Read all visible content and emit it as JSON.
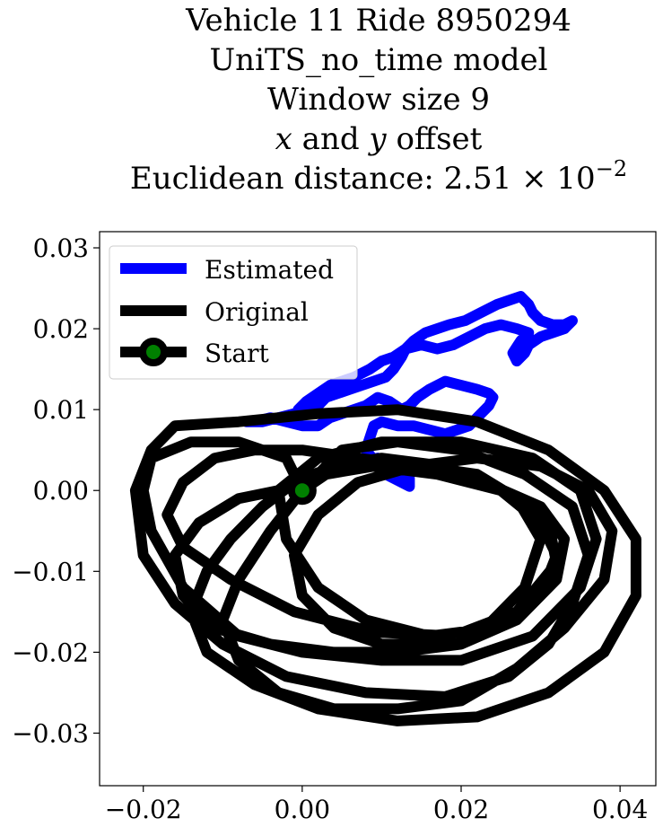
{
  "title": {
    "line1": "Vehicle 11 Ride 8950294",
    "line2": "UniTS_no_time model",
    "line3": "Window size 9",
    "line4_x": "x",
    "line4_and": " and ",
    "line4_y": "y",
    "line4_rest": " offset",
    "line5_prefix": "Euclidean distance: 2.51 × 10",
    "line5_exp": "−2"
  },
  "chart_data": {
    "type": "line",
    "xlim": [
      -0.0255,
      0.0445
    ],
    "ylim": [
      -0.0365,
      0.032
    ],
    "xticks": [
      {
        "value": -0.02,
        "label": "−0.02"
      },
      {
        "value": 0.0,
        "label": "0.00"
      },
      {
        "value": 0.02,
        "label": "0.02"
      },
      {
        "value": 0.04,
        "label": "0.04"
      }
    ],
    "yticks": [
      {
        "value": 0.03,
        "label": "0.03"
      },
      {
        "value": 0.02,
        "label": "0.02"
      },
      {
        "value": 0.01,
        "label": "0.01"
      },
      {
        "value": 0.0,
        "label": "0.00"
      },
      {
        "value": -0.01,
        "label": "−0.01"
      },
      {
        "value": -0.02,
        "label": "−0.02"
      },
      {
        "value": -0.03,
        "label": "−0.03"
      }
    ],
    "grid": false,
    "legend_placement": "upper-left",
    "series": [
      {
        "name": "Estimated",
        "color": "#0000ff",
        "points": [
          [
            0.0,
            0.0
          ],
          [
            0.0015,
            0.0015
          ],
          [
            0.0035,
            0.003
          ],
          [
            0.005,
            0.0045
          ],
          [
            0.0065,
            0.004
          ],
          [
            0.008,
            0.0035
          ],
          [
            0.0095,
            0.004
          ],
          [
            0.0115,
            0.003
          ],
          [
            0.0135,
            0.0015
          ],
          [
            0.0135,
            0.0005
          ],
          [
            0.0125,
            0.001
          ],
          [
            0.0105,
            0.002
          ],
          [
            0.008,
            0.005
          ],
          [
            0.009,
            0.008
          ],
          [
            0.01,
            0.0085
          ],
          [
            0.012,
            0.008
          ],
          [
            0.014,
            0.008
          ],
          [
            0.016,
            0.0075
          ],
          [
            0.018,
            0.007
          ],
          [
            0.0195,
            0.0075
          ],
          [
            0.021,
            0.008
          ],
          [
            0.0225,
            0.0095
          ],
          [
            0.0235,
            0.0105
          ],
          [
            0.024,
            0.0115
          ],
          [
            0.0235,
            0.012
          ],
          [
            0.022,
            0.0125
          ],
          [
            0.02,
            0.013
          ],
          [
            0.018,
            0.0135
          ],
          [
            0.016,
            0.0125
          ],
          [
            0.0145,
            0.0115
          ],
          [
            0.0135,
            0.0105
          ],
          [
            0.0125,
            0.01
          ],
          [
            0.011,
            0.011
          ],
          [
            0.0095,
            0.0115
          ],
          [
            0.008,
            0.0105
          ],
          [
            0.0065,
            0.01
          ],
          [
            0.005,
            0.0095
          ],
          [
            0.0035,
            0.009
          ],
          [
            0.002,
            0.008
          ],
          [
            0.0,
            0.008
          ],
          [
            -0.002,
            0.0085
          ],
          [
            -0.004,
            0.009
          ],
          [
            -0.006,
            0.0085
          ],
          [
            -0.007,
            0.0085
          ],
          [
            -0.005,
            0.0085
          ],
          [
            -0.003,
            0.009
          ],
          [
            -0.001,
            0.0095
          ],
          [
            0.0005,
            0.0095
          ],
          [
            0.002,
            0.0105
          ],
          [
            0.003,
            0.0115
          ],
          [
            0.0045,
            0.012
          ],
          [
            0.006,
            0.0125
          ],
          [
            0.0075,
            0.013
          ],
          [
            0.009,
            0.0135
          ],
          [
            0.0105,
            0.014
          ],
          [
            0.0115,
            0.015
          ],
          [
            0.0125,
            0.0165
          ],
          [
            0.013,
            0.0175
          ],
          [
            0.014,
            0.0185
          ],
          [
            0.0155,
            0.0195
          ],
          [
            0.017,
            0.02
          ],
          [
            0.0185,
            0.0205
          ],
          [
            0.0205,
            0.021
          ],
          [
            0.0225,
            0.022
          ],
          [
            0.0245,
            0.023
          ],
          [
            0.026,
            0.0235
          ],
          [
            0.0275,
            0.024
          ],
          [
            0.0285,
            0.023
          ],
          [
            0.029,
            0.022
          ],
          [
            0.03,
            0.021
          ],
          [
            0.0315,
            0.0205
          ],
          [
            0.033,
            0.0205
          ],
          [
            0.034,
            0.021
          ],
          [
            0.033,
            0.02
          ],
          [
            0.0315,
            0.0195
          ],
          [
            0.03,
            0.019
          ],
          [
            0.0285,
            0.018
          ],
          [
            0.028,
            0.017
          ],
          [
            0.027,
            0.016
          ],
          [
            0.0265,
            0.017
          ],
          [
            0.0275,
            0.0185
          ],
          [
            0.0285,
            0.0195
          ],
          [
            0.027,
            0.02
          ],
          [
            0.025,
            0.0205
          ],
          [
            0.023,
            0.02
          ],
          [
            0.021,
            0.019
          ],
          [
            0.019,
            0.018
          ],
          [
            0.017,
            0.0175
          ],
          [
            0.015,
            0.018
          ],
          [
            0.013,
            0.0175
          ],
          [
            0.0115,
            0.0165
          ],
          [
            0.01,
            0.016
          ],
          [
            0.0085,
            0.015
          ],
          [
            0.0075,
            0.0145
          ],
          [
            0.0065,
            0.014
          ],
          [
            0.005,
            0.0135
          ],
          [
            0.0035,
            0.013
          ],
          [
            0.002,
            0.012
          ],
          [
            0.0005,
            0.011
          ],
          [
            -0.0005,
            0.01
          ]
        ]
      },
      {
        "name": "Original",
        "color": "#000000",
        "points": [
          [
            0.0,
            0.0
          ],
          [
            -0.002,
            0.004
          ],
          [
            -0.008,
            0.006
          ],
          [
            -0.014,
            0.006
          ],
          [
            -0.019,
            0.004
          ],
          [
            -0.02,
            0.0
          ],
          [
            -0.019,
            -0.005
          ],
          [
            -0.015,
            -0.012
          ],
          [
            -0.008,
            -0.018
          ],
          [
            0.0,
            -0.02
          ],
          [
            0.01,
            -0.021
          ],
          [
            0.02,
            -0.021
          ],
          [
            0.029,
            -0.018
          ],
          [
            0.035,
            -0.012
          ],
          [
            0.037,
            -0.006
          ],
          [
            0.035,
            0.0
          ],
          [
            0.029,
            0.004
          ],
          [
            0.02,
            0.006
          ],
          [
            0.01,
            0.006
          ],
          [
            0.002,
            0.004
          ],
          [
            -0.003,
            0.0
          ],
          [
            -0.002,
            -0.006
          ],
          [
            0.002,
            -0.012
          ],
          [
            0.008,
            -0.016
          ],
          [
            0.016,
            -0.018
          ],
          [
            0.024,
            -0.017
          ],
          [
            0.03,
            -0.013
          ],
          [
            0.032,
            -0.008
          ],
          [
            0.03,
            -0.004
          ],
          [
            0.025,
            0.0
          ],
          [
            0.018,
            0.003
          ],
          [
            0.01,
            0.004
          ],
          [
            0.004,
            0.003
          ],
          [
            -0.001,
            0.001
          ],
          [
            -0.005,
            -0.002
          ],
          [
            -0.009,
            -0.006
          ],
          [
            -0.012,
            -0.01
          ],
          [
            -0.014,
            -0.015
          ],
          [
            -0.012,
            -0.02
          ],
          [
            -0.006,
            -0.024
          ],
          [
            0.002,
            -0.027
          ],
          [
            0.012,
            -0.0285
          ],
          [
            0.022,
            -0.028
          ],
          [
            0.031,
            -0.025
          ],
          [
            0.038,
            -0.02
          ],
          [
            0.042,
            -0.013
          ],
          [
            0.042,
            -0.006
          ],
          [
            0.038,
            0.0
          ],
          [
            0.031,
            0.005
          ],
          [
            0.022,
            0.0085
          ],
          [
            0.012,
            0.01
          ],
          [
            0.002,
            0.0095
          ],
          [
            -0.008,
            0.0085
          ],
          [
            -0.016,
            0.008
          ],
          [
            -0.019,
            0.005
          ],
          [
            -0.021,
            0.0
          ],
          [
            -0.02,
            -0.008
          ],
          [
            -0.016,
            -0.014
          ],
          [
            -0.01,
            -0.019
          ],
          [
            -0.002,
            -0.023
          ],
          [
            0.008,
            -0.025
          ],
          [
            0.018,
            -0.0255
          ],
          [
            0.026,
            -0.023
          ],
          [
            0.031,
            -0.019
          ],
          [
            0.034,
            -0.014
          ],
          [
            0.036,
            -0.008
          ],
          [
            0.034,
            -0.002
          ],
          [
            0.028,
            0.002
          ],
          [
            0.02,
            0.005
          ],
          [
            0.012,
            0.006
          ],
          [
            0.005,
            0.005
          ],
          [
            0.0,
            0.0
          ],
          [
            -0.004,
            -0.005
          ],
          [
            -0.008,
            -0.011
          ],
          [
            -0.01,
            -0.016
          ],
          [
            -0.008,
            -0.021
          ],
          [
            -0.003,
            -0.025
          ],
          [
            0.004,
            -0.027
          ],
          [
            0.012,
            -0.027
          ],
          [
            0.02,
            -0.026
          ],
          [
            0.027,
            -0.022
          ],
          [
            0.033,
            -0.017
          ],
          [
            0.038,
            -0.011
          ],
          [
            0.039,
            -0.005
          ],
          [
            0.036,
            0.0
          ],
          [
            0.03,
            0.003
          ],
          [
            0.022,
            0.004
          ],
          [
            0.014,
            0.003
          ],
          [
            0.007,
            0.001
          ],
          [
            0.002,
            -0.003
          ],
          [
            -0.001,
            -0.008
          ],
          [
            0.0,
            -0.013
          ],
          [
            0.004,
            -0.017
          ],
          [
            0.01,
            -0.019
          ],
          [
            0.017,
            -0.019
          ],
          [
            0.023,
            -0.017
          ],
          [
            0.028,
            -0.012
          ],
          [
            0.03,
            -0.006
          ],
          [
            0.027,
            -0.001
          ],
          [
            0.022,
            0.002
          ],
          [
            0.015,
            0.003
          ],
          [
            0.008,
            0.003
          ],
          [
            0.002,
            0.002
          ],
          [
            -0.003,
            0.0
          ],
          [
            -0.008,
            -0.001
          ],
          [
            -0.013,
            -0.004
          ],
          [
            -0.016,
            -0.008
          ],
          [
            -0.015,
            -0.013
          ],
          [
            -0.011,
            -0.017
          ],
          [
            -0.004,
            -0.019
          ],
          [
            0.004,
            -0.02
          ],
          [
            0.012,
            -0.02
          ],
          [
            0.02,
            -0.019
          ],
          [
            0.027,
            -0.016
          ],
          [
            0.032,
            -0.011
          ],
          [
            0.033,
            -0.006
          ],
          [
            0.03,
            -0.002
          ],
          [
            0.023,
            0.001
          ],
          [
            0.015,
            0.003
          ],
          [
            0.007,
            0.004
          ],
          [
            0.0,
            0.005
          ],
          [
            -0.006,
            0.005
          ],
          [
            -0.011,
            0.004
          ],
          [
            -0.015,
            0.001
          ],
          [
            -0.017,
            -0.003
          ],
          [
            -0.015,
            -0.007
          ],
          [
            -0.009,
            -0.011
          ],
          [
            -0.001,
            -0.015
          ],
          [
            0.009,
            -0.0175
          ],
          [
            0.019,
            -0.018
          ],
          [
            0.027,
            -0.015
          ],
          [
            0.032,
            -0.009
          ],
          [
            0.031,
            -0.004
          ],
          [
            0.025,
            0.0
          ],
          [
            0.017,
            0.002
          ],
          [
            0.009,
            0.003
          ],
          [
            0.003,
            0.002
          ],
          [
            0.0,
            0.0
          ]
        ]
      }
    ],
    "start_point": {
      "name": "Start",
      "x": 0.0,
      "y": 0.0,
      "color": "#008000",
      "edge_color": "#000000"
    }
  }
}
